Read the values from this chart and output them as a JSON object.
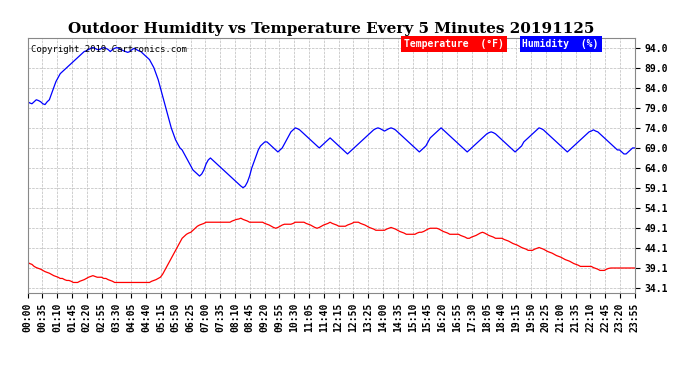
{
  "title": "Outdoor Humidity vs Temperature Every 5 Minutes 20191125",
  "copyright": "Copyright 2019 Cartronics.com",
  "legend_temp_label": "Temperature  (°F)",
  "legend_hum_label": "Humidity  (%)",
  "temp_color": "#ff0000",
  "hum_color": "#0000ff",
  "yticks": [
    34.1,
    39.1,
    44.1,
    49.1,
    54.1,
    59.1,
    64.0,
    69.0,
    74.0,
    79.0,
    84.0,
    89.0,
    94.0
  ],
  "ylim_min": 33.0,
  "ylim_max": 96.5,
  "background_color": "#ffffff",
  "grid_color": "#bbbbbb",
  "title_fontsize": 11,
  "tick_fontsize": 7,
  "humidity_data": [
    80.5,
    80.2,
    80.0,
    80.5,
    81.0,
    80.8,
    80.5,
    80.0,
    79.8,
    80.5,
    81.0,
    82.5,
    84.0,
    85.5,
    86.5,
    87.5,
    88.0,
    88.5,
    89.0,
    89.5,
    90.0,
    90.5,
    91.0,
    91.5,
    92.0,
    92.5,
    93.0,
    93.2,
    93.5,
    93.8,
    94.0,
    93.8,
    93.5,
    93.5,
    93.8,
    94.0,
    93.8,
    93.5,
    93.0,
    93.5,
    93.8,
    94.0,
    93.8,
    93.5,
    93.2,
    93.0,
    92.8,
    93.0,
    93.5,
    93.8,
    93.5,
    93.2,
    93.0,
    92.5,
    92.0,
    91.5,
    91.0,
    90.0,
    89.0,
    87.5,
    86.0,
    84.0,
    82.0,
    80.0,
    78.0,
    76.0,
    74.0,
    72.5,
    71.0,
    70.0,
    69.0,
    68.5,
    67.5,
    66.5,
    65.5,
    64.5,
    63.5,
    63.0,
    62.5,
    62.0,
    62.5,
    63.5,
    65.0,
    66.0,
    66.5,
    66.0,
    65.5,
    65.0,
    64.5,
    64.0,
    63.5,
    63.0,
    62.5,
    62.0,
    61.5,
    61.0,
    60.5,
    60.0,
    59.5,
    59.1,
    59.5,
    60.5,
    62.0,
    64.0,
    65.5,
    67.0,
    68.5,
    69.5,
    70.0,
    70.5,
    70.5,
    70.0,
    69.5,
    69.0,
    68.5,
    68.0,
    68.5,
    69.0,
    70.0,
    71.0,
    72.0,
    73.0,
    73.5,
    74.0,
    73.8,
    73.5,
    73.0,
    72.5,
    72.0,
    71.5,
    71.0,
    70.5,
    70.0,
    69.5,
    69.0,
    69.5,
    70.0,
    70.5,
    71.0,
    71.5,
    71.0,
    70.5,
    70.0,
    69.5,
    69.0,
    68.5,
    68.0,
    67.5,
    68.0,
    68.5,
    69.0,
    69.5,
    70.0,
    70.5,
    71.0,
    71.5,
    72.0,
    72.5,
    73.0,
    73.5,
    73.8,
    74.0,
    73.8,
    73.5,
    73.2,
    73.5,
    73.8,
    74.0,
    73.8,
    73.5,
    73.0,
    72.5,
    72.0,
    71.5,
    71.0,
    70.5,
    70.0,
    69.5,
    69.0,
    68.5,
    68.0,
    68.5,
    69.0,
    69.5,
    70.5,
    71.5,
    72.0,
    72.5,
    73.0,
    73.5,
    74.0,
    73.5,
    73.0,
    72.5,
    72.0,
    71.5,
    71.0,
    70.5,
    70.0,
    69.5,
    69.0,
    68.5,
    68.0,
    68.5,
    69.0,
    69.5,
    70.0,
    70.5,
    71.0,
    71.5,
    72.0,
    72.5,
    72.8,
    73.0,
    72.8,
    72.5,
    72.0,
    71.5,
    71.0,
    70.5,
    70.0,
    69.5,
    69.0,
    68.5,
    68.0,
    68.5,
    69.0,
    69.5,
    70.5,
    71.0,
    71.5,
    72.0,
    72.5,
    73.0,
    73.5,
    74.0,
    73.8,
    73.5,
    73.0,
    72.5,
    72.0,
    71.5,
    71.0,
    70.5,
    70.0,
    69.5,
    69.0,
    68.5,
    68.0,
    68.5,
    69.0,
    69.5,
    70.0,
    70.5,
    71.0,
    71.5,
    72.0,
    72.5,
    73.0,
    73.2,
    73.5,
    73.2,
    73.0,
    72.5,
    72.0,
    71.5,
    71.0,
    70.5,
    70.0,
    69.5,
    69.0,
    68.5,
    68.5,
    68.0,
    67.5,
    67.5,
    68.0,
    68.5,
    69.0,
    69.0
  ],
  "temperature_data": [
    40.5,
    40.2,
    40.0,
    39.5,
    39.2,
    39.0,
    38.8,
    38.5,
    38.2,
    38.0,
    37.8,
    37.5,
    37.2,
    37.0,
    36.8,
    36.5,
    36.5,
    36.2,
    36.0,
    36.0,
    35.8,
    35.5,
    35.5,
    35.5,
    35.8,
    36.0,
    36.2,
    36.5,
    36.8,
    37.0,
    37.2,
    37.0,
    36.8,
    36.8,
    36.8,
    36.5,
    36.5,
    36.2,
    36.0,
    35.8,
    35.5,
    35.5,
    35.5,
    35.5,
    35.5,
    35.5,
    35.5,
    35.5,
    35.5,
    35.5,
    35.5,
    35.5,
    35.5,
    35.5,
    35.5,
    35.5,
    35.5,
    35.8,
    36.0,
    36.2,
    36.5,
    36.8,
    37.5,
    38.5,
    39.5,
    40.5,
    41.5,
    42.5,
    43.5,
    44.5,
    45.5,
    46.5,
    47.0,
    47.5,
    47.8,
    48.0,
    48.5,
    49.0,
    49.5,
    49.8,
    50.0,
    50.2,
    50.5,
    50.5,
    50.5,
    50.5,
    50.5,
    50.5,
    50.5,
    50.5,
    50.5,
    50.5,
    50.5,
    50.5,
    50.8,
    51.0,
    51.2,
    51.3,
    51.5,
    51.2,
    51.0,
    50.8,
    50.5,
    50.5,
    50.5,
    50.5,
    50.5,
    50.5,
    50.5,
    50.2,
    50.0,
    49.8,
    49.5,
    49.2,
    49.0,
    49.2,
    49.5,
    49.8,
    50.0,
    50.0,
    50.0,
    50.0,
    50.2,
    50.5,
    50.5,
    50.5,
    50.5,
    50.5,
    50.2,
    50.0,
    49.8,
    49.5,
    49.2,
    49.0,
    49.2,
    49.5,
    49.8,
    50.0,
    50.2,
    50.5,
    50.2,
    50.0,
    49.8,
    49.5,
    49.5,
    49.5,
    49.5,
    49.8,
    50.0,
    50.2,
    50.5,
    50.5,
    50.5,
    50.2,
    50.0,
    49.8,
    49.5,
    49.2,
    49.0,
    48.8,
    48.5,
    48.5,
    48.5,
    48.5,
    48.5,
    48.8,
    49.0,
    49.2,
    49.0,
    48.8,
    48.5,
    48.2,
    48.0,
    47.8,
    47.5,
    47.5,
    47.5,
    47.5,
    47.5,
    47.8,
    48.0,
    48.0,
    48.2,
    48.5,
    48.8,
    49.0,
    49.0,
    49.0,
    49.0,
    48.8,
    48.5,
    48.2,
    48.0,
    47.8,
    47.5,
    47.5,
    47.5,
    47.5,
    47.5,
    47.2,
    47.0,
    46.8,
    46.5,
    46.5,
    46.8,
    47.0,
    47.2,
    47.5,
    47.8,
    48.0,
    47.8,
    47.5,
    47.2,
    47.0,
    46.8,
    46.5,
    46.5,
    46.5,
    46.5,
    46.2,
    46.0,
    45.8,
    45.5,
    45.2,
    45.0,
    44.8,
    44.5,
    44.2,
    44.0,
    43.8,
    43.5,
    43.5,
    43.5,
    43.8,
    44.0,
    44.2,
    44.0,
    43.8,
    43.5,
    43.2,
    43.0,
    42.8,
    42.5,
    42.2,
    42.0,
    41.8,
    41.5,
    41.2,
    41.0,
    40.8,
    40.5,
    40.2,
    40.0,
    39.8,
    39.5,
    39.5,
    39.5,
    39.5,
    39.5,
    39.5,
    39.2,
    39.0,
    38.8,
    38.5,
    38.5,
    38.5,
    38.8,
    39.0,
    39.1,
    39.1,
    39.1,
    39.1,
    39.1,
    39.1,
    39.1,
    39.1,
    39.1,
    39.1,
    39.1,
    39.1
  ],
  "xtick_labels": [
    "00:00",
    "00:35",
    "01:10",
    "01:45",
    "02:20",
    "02:55",
    "03:30",
    "04:05",
    "04:40",
    "05:15",
    "05:50",
    "06:25",
    "07:00",
    "07:35",
    "08:10",
    "08:45",
    "09:20",
    "09:55",
    "10:30",
    "11:05",
    "11:40",
    "12:15",
    "12:50",
    "13:25",
    "14:00",
    "14:35",
    "15:10",
    "15:45",
    "16:20",
    "16:55",
    "17:30",
    "18:05",
    "18:40",
    "19:15",
    "19:50",
    "20:25",
    "21:00",
    "21:35",
    "22:10",
    "22:45",
    "23:20",
    "23:55"
  ]
}
